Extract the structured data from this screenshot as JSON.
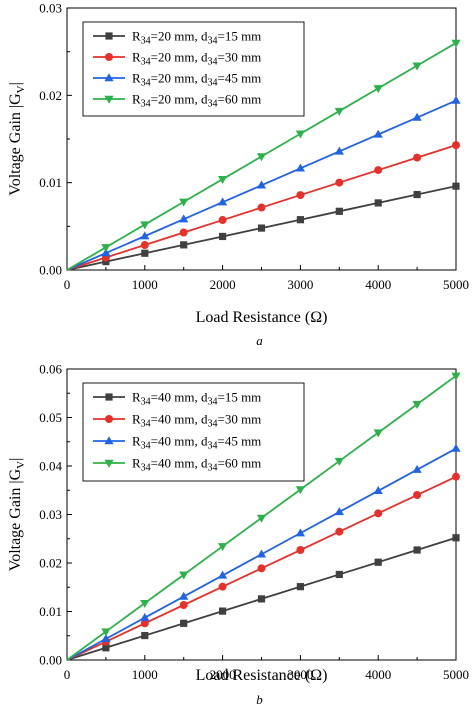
{
  "chart_data": [
    {
      "type": "line",
      "caption": "a",
      "xlabel": "Load Resistance (Ω)",
      "ylabel": "Voltage Gain |G",
      "ylabel_sub": "V",
      "ylabel_end": "|",
      "xlim": [
        0,
        5000
      ],
      "ylim": [
        0,
        0.03
      ],
      "xticks": [
        "0",
        "1000",
        "2000",
        "3000",
        "4000",
        "5000"
      ],
      "yticks": [
        "0.00",
        "0.01",
        "0.02",
        "0.03"
      ],
      "grid": false,
      "legend_position": "top-left",
      "x": [
        0,
        500,
        1000,
        1500,
        2000,
        2500,
        3000,
        3500,
        4000,
        4500,
        5000
      ],
      "series": [
        {
          "name": "R34=20 mm, d34=15 mm",
          "legend": {
            "a": "R",
            "a_sub": "34",
            "b": "=20 mm, d",
            "b_sub": "34",
            "c": "=15 mm"
          },
          "color": "#404040",
          "marker": "square",
          "values": [
            0,
            0.00096,
            0.00192,
            0.00288,
            0.00384,
            0.0048,
            0.00576,
            0.00672,
            0.00768,
            0.00864,
            0.0096
          ]
        },
        {
          "name": "R34=20 mm, d34=30 mm",
          "legend": {
            "a": "R",
            "a_sub": "34",
            "b": "=20 mm, d",
            "b_sub": "34",
            "c": "=30 mm"
          },
          "color": "#e8302a",
          "marker": "circle",
          "values": [
            0,
            0.00143,
            0.00286,
            0.00429,
            0.00572,
            0.00715,
            0.00858,
            0.01001,
            0.01144,
            0.01287,
            0.0143
          ]
        },
        {
          "name": "R34=20 mm, d34=45 mm",
          "legend": {
            "a": "R",
            "a_sub": "34",
            "b": "=20 mm, d",
            "b_sub": "34",
            "c": "=45 mm"
          },
          "color": "#1f64e6",
          "marker": "triangle-up",
          "values": [
            0,
            0.00194,
            0.00388,
            0.00582,
            0.00776,
            0.0097,
            0.01164,
            0.01358,
            0.01552,
            0.01746,
            0.0194
          ]
        },
        {
          "name": "R34=20 mm, d34=60 mm",
          "legend": {
            "a": "R",
            "a_sub": "34",
            "b": "=20 mm, d",
            "b_sub": "34",
            "c": "=60 mm"
          },
          "color": "#2bb34a",
          "marker": "triangle-down",
          "values": [
            0,
            0.0026,
            0.0052,
            0.0078,
            0.0104,
            0.013,
            0.0156,
            0.0182,
            0.0208,
            0.0234,
            0.026
          ]
        }
      ]
    },
    {
      "type": "line",
      "caption": "b",
      "xlabel": "Load Resistance (Ω)",
      "ylabel": "Voltage Gain |G",
      "ylabel_sub": "V",
      "ylabel_end": "|",
      "xlim": [
        0,
        5000
      ],
      "ylim": [
        0,
        0.06
      ],
      "xticks": [
        "0",
        "1000",
        "2000",
        "3000",
        "4000",
        "5000"
      ],
      "yticks": [
        "0.00",
        "0.01",
        "0.02",
        "0.03",
        "0.04",
        "0.05",
        "0.06"
      ],
      "grid": false,
      "legend_position": "top-left",
      "x": [
        0,
        500,
        1000,
        1500,
        2000,
        2500,
        3000,
        3500,
        4000,
        4500,
        5000
      ],
      "series": [
        {
          "name": "R34=40 mm, d34=15 mm",
          "legend": {
            "a": "R",
            "a_sub": "34",
            "b": "=40 mm, d",
            "b_sub": "34",
            "c": "=15 mm"
          },
          "color": "#404040",
          "marker": "square",
          "values": [
            0,
            0.00252,
            0.00504,
            0.00756,
            0.01008,
            0.0126,
            0.01512,
            0.01764,
            0.02016,
            0.02268,
            0.0252
          ]
        },
        {
          "name": "R34=40 mm, d34=30 mm",
          "legend": {
            "a": "R",
            "a_sub": "34",
            "b": "=40 mm, d",
            "b_sub": "34",
            "c": "=30 mm"
          },
          "color": "#e8302a",
          "marker": "circle",
          "values": [
            0,
            0.00378,
            0.00756,
            0.01134,
            0.01512,
            0.0189,
            0.02268,
            0.02646,
            0.03024,
            0.03402,
            0.0378
          ]
        },
        {
          "name": "R34=40 mm, d34=45 mm",
          "legend": {
            "a": "R",
            "a_sub": "34",
            "b": "=40 mm, d",
            "b_sub": "34",
            "c": "=45 mm"
          },
          "color": "#1f64e6",
          "marker": "triangle-up",
          "values": [
            0,
            0.00436,
            0.00872,
            0.01308,
            0.01744,
            0.0218,
            0.02616,
            0.03052,
            0.03488,
            0.03924,
            0.0436
          ]
        },
        {
          "name": "R34=40 mm, d34=60 mm",
          "legend": {
            "a": "R",
            "a_sub": "34",
            "b": "=40 mm, d",
            "b_sub": "34",
            "c": "=60 mm"
          },
          "color": "#2bb34a",
          "marker": "triangle-down",
          "values": [
            0,
            0.00586,
            0.01172,
            0.01758,
            0.02344,
            0.0293,
            0.03516,
            0.04102,
            0.04688,
            0.05274,
            0.0586
          ]
        }
      ]
    }
  ]
}
